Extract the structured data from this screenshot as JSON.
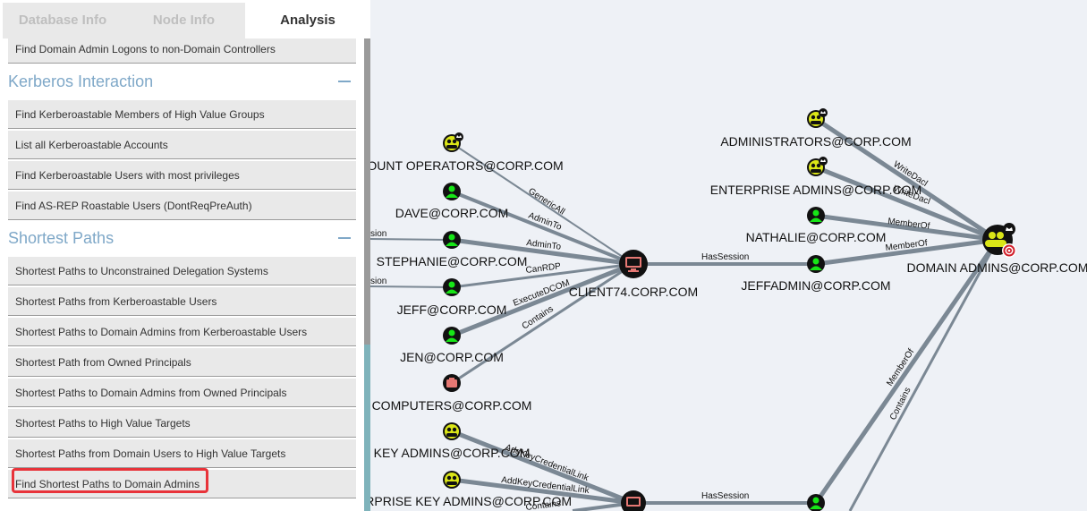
{
  "tabs": [
    "Database Info",
    "Node Info",
    "Analysis"
  ],
  "queries": {
    "top_item": "Find Domain Admin Logons to non-Domain Controllers",
    "kerberos": {
      "title": "Kerberos Interaction",
      "items": [
        "Find Kerberoastable Members of High Value Groups",
        "List all Kerberoastable Accounts",
        "Find Kerberoastable Users with most privileges",
        "Find AS-REP Roastable Users (DontReqPreAuth)"
      ]
    },
    "shortest": {
      "title": "Shortest Paths",
      "items": [
        "Shortest Paths to Unconstrained Delegation Systems",
        "Shortest Paths from Kerberoastable Users",
        "Shortest Paths to Domain Admins from Kerberoastable Users",
        "Shortest Path from Owned Principals",
        "Shortest Paths to Domain Admins from Owned Principals",
        "Shortest Paths to High Value Targets",
        "Shortest Paths from Domain Users to High Value Targets",
        "Find Shortest Paths to Domain Admins"
      ]
    }
  },
  "colors": {
    "user_node": "#17e617",
    "group_node": "#dbe617",
    "computer_node": "#e67873",
    "edge": "#7b8894",
    "highlight": "#e8333a"
  },
  "graph": {
    "nodes": {
      "account_operators": "COUNT OPERATORS@CORP.COM",
      "dave": "DAVE@CORP.COM",
      "stephanie": "STEPHANIE@CORP.COM",
      "jeff": "JEFF@CORP.COM",
      "jen": "JEN@CORP.COM",
      "computers": "COMPUTERS@CORP.COM",
      "key_admins": "KEY ADMINS@CORP.COM",
      "enterprise_key_admins": "ERPRISE KEY ADMINS@CORP.COM",
      "client74": "CLIENT74.CORP.COM",
      "administrators": "ADMINISTRATORS@CORP.COM",
      "enterprise_admins": "ENTERPRISE ADMINS@CORP.COM",
      "nathalie": "NATHALIE@CORP.COM",
      "jeffadmin": "JEFFADMIN@CORP.COM",
      "domain_admins": "DOMAIN ADMINS@CORP.COM"
    },
    "edges": {
      "acc_op": "GenericAll",
      "dave": "AdminTo",
      "stephanie": "AdminTo",
      "jeff_rdp": "CanRDP",
      "jeff_dcom": "ExecuteDCOM",
      "computers": "Contains",
      "client_session": "HasSession",
      "admins": "WriteDacl",
      "enterprise": "WriteDacl",
      "nathalie": "MemberOf",
      "jeffadmin": "MemberOf",
      "key_admins": "AddKeyCredentialLink",
      "ent_key_admins": "AddKeyCredentialLink",
      "ent_key_contains": "Contains",
      "lower_session": "HasSession",
      "lower_memberof": "MemberOf",
      "lower_contains": "Contains",
      "left_session_1": "sion",
      "left_session_2": "sion"
    }
  }
}
